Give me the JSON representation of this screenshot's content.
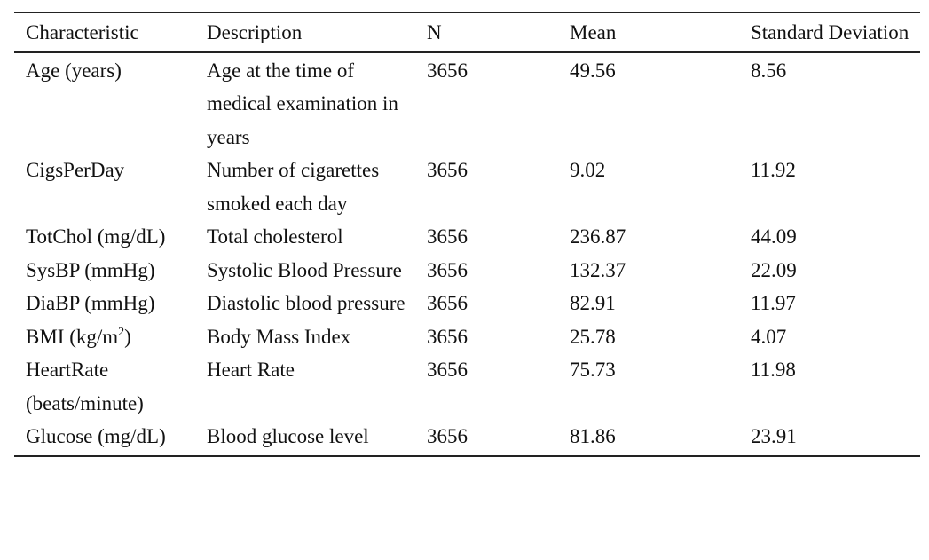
{
  "table": {
    "headers": {
      "characteristic": "Characteristic",
      "description": "Description",
      "n": "N",
      "mean": "Mean",
      "sd": "Standard Deviation"
    },
    "rows": [
      {
        "characteristic": "Age (years)",
        "description": "Age at the time of medical examination in years",
        "n": "3656",
        "mean": "49.56",
        "sd": "8.56"
      },
      {
        "characteristic": "CigsPerDay",
        "description": "Number of cigarettes smoked each day",
        "n": "3656",
        "mean": "9.02",
        "sd": "11.92"
      },
      {
        "characteristic": "TotChol (mg/dL)",
        "description": "Total cholesterol",
        "n": "3656",
        "mean": "236.87",
        "sd": "44.09"
      },
      {
        "characteristic": "SysBP (mmHg)",
        "description": "Systolic Blood Pressure",
        "n": "3656",
        "mean": "132.37",
        "sd": "22.09"
      },
      {
        "characteristic": "DiaBP (mmHg)",
        "description": "Diastolic blood pressure",
        "n": "3656",
        "mean": "82.91",
        "sd": "11.97"
      },
      {
        "characteristic_base": "BMI (kg/m",
        "characteristic_sup": "2",
        "characteristic_close": ")",
        "description": "Body Mass Index",
        "n": "3656",
        "mean": "25.78",
        "sd": "4.07"
      },
      {
        "characteristic": "HeartRate (beats/minute)",
        "description": "Heart Rate",
        "n": "3656",
        "mean": "75.73",
        "sd": "11.98"
      },
      {
        "characteristic": "Glucose (mg/dL)",
        "description": "Blood glucose level",
        "n": "3656",
        "mean": "81.86",
        "sd": "23.91"
      }
    ]
  }
}
